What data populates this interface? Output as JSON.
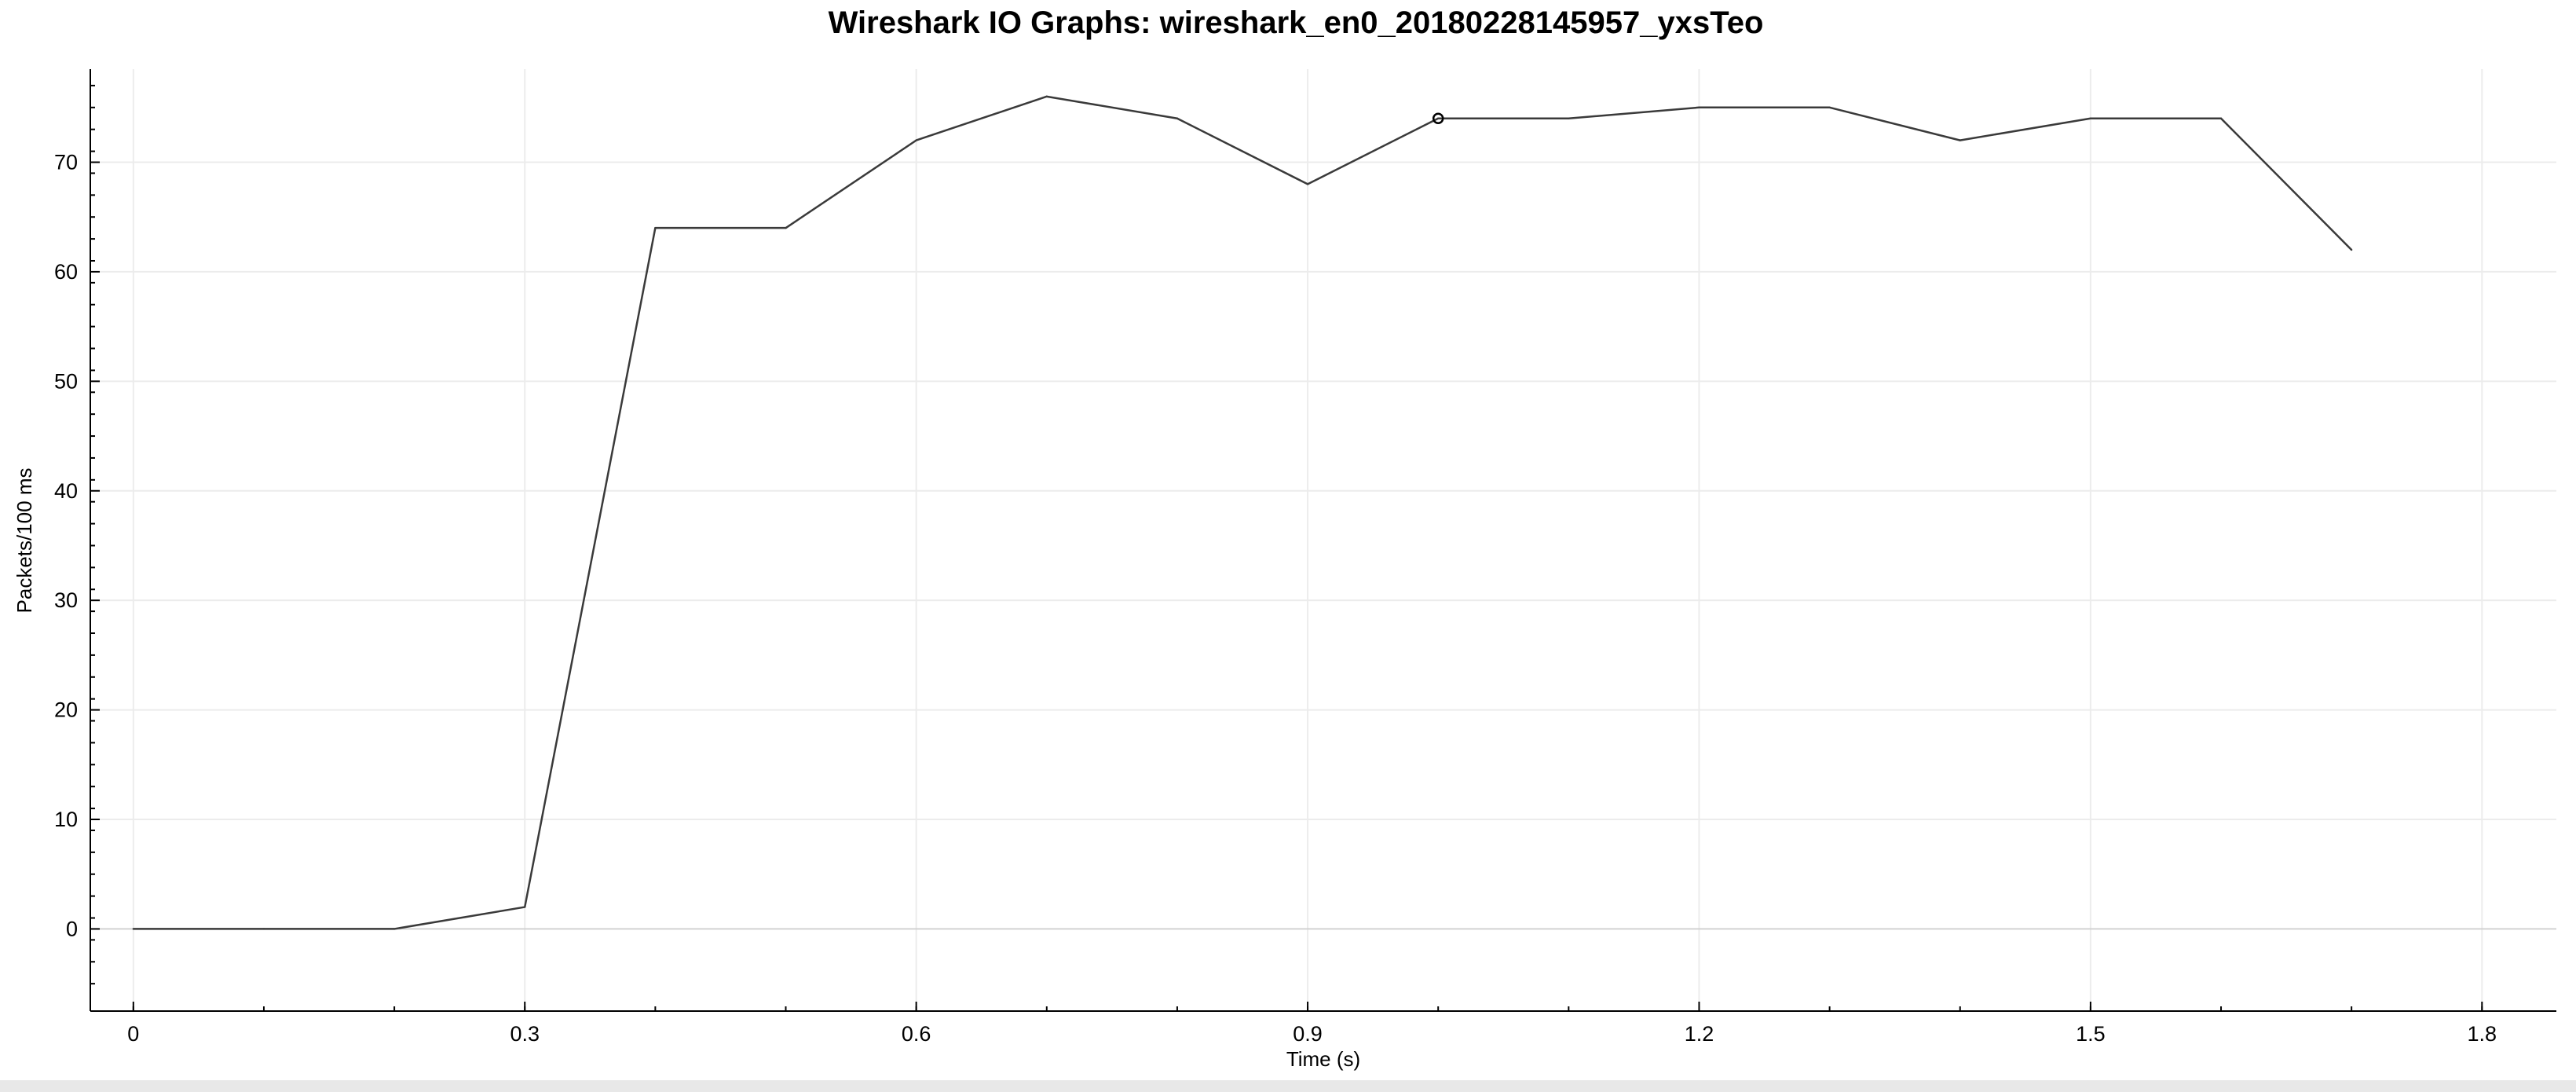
{
  "window": {
    "title": "Wireshark IO Graphs: wireshark_en0_20180228145957_yxsTeo"
  },
  "chart_data": {
    "type": "line",
    "title": "Wireshark IO Graphs: wireshark_en0_20180228145957_yxsTeo",
    "xlabel": "Time (s)",
    "ylabel": "Packets/100 ms",
    "xlim": [
      -0.033,
      1.857
    ],
    "ylim": [
      -7.5,
      78.5
    ],
    "xticks": [
      0,
      0.3,
      0.6,
      0.9,
      1.2,
      1.5,
      1.8
    ],
    "xtick_labels": [
      "0",
      "0.3",
      "0.6",
      "0.9",
      "1.2",
      "1.5",
      "1.8"
    ],
    "yticks": [
      0,
      10,
      20,
      30,
      40,
      50,
      60,
      70
    ],
    "ytick_labels": [
      "0",
      "10",
      "20",
      "30",
      "40",
      "50",
      "60",
      "70"
    ],
    "grid": true,
    "series": [
      {
        "color": "#3a3a3a",
        "x": [
          0,
          0.1,
          0.2,
          0.3,
          0.4,
          0.5,
          0.6,
          0.7,
          0.8,
          0.9,
          1.0,
          1.1,
          1.2,
          1.3,
          1.4,
          1.5,
          1.6,
          1.7
        ],
        "values": [
          0,
          0,
          0,
          2,
          64,
          64,
          72,
          76,
          74,
          68,
          74,
          74,
          75,
          75,
          72,
          74,
          74,
          62
        ]
      }
    ],
    "highlight_point": {
      "x": 1.0,
      "y": 74
    }
  }
}
